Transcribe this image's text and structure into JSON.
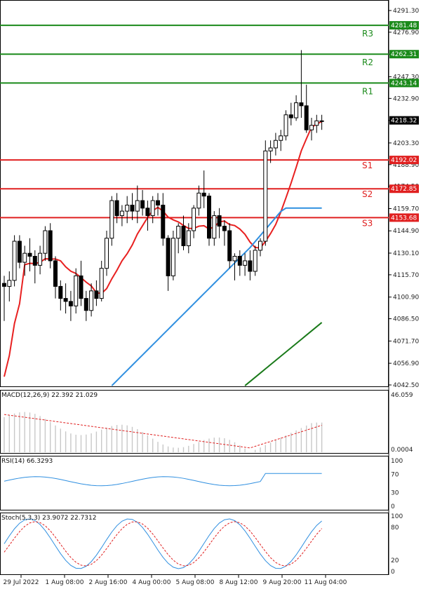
{
  "chart_data": {
    "type": "candlestick",
    "price_axis": {
      "min": 4042.5,
      "max": 4291.3,
      "ticks": [
        "4291.30",
        "4276.90",
        "4262.30",
        "4247.30",
        "4232.90",
        "4218.30",
        "4203.30",
        "4188.90",
        "4174.50",
        "4159.70",
        "4144.90",
        "4130.10",
        "4115.70",
        "4100.90",
        "4086.50",
        "4071.70",
        "4056.90",
        "4042.50"
      ]
    },
    "time_labels": [
      "29 Jul 2022",
      "1 Aug 08:00",
      "2 Aug 16:00",
      "4 Aug 00:00",
      "5 Aug 08:00",
      "8 Aug 12:00",
      "9 Aug 20:00",
      "11 Aug 04:00"
    ],
    "levels": [
      {
        "name": "R3",
        "value": 4281.48,
        "label": "4281.48",
        "color": "#1a8a1a"
      },
      {
        "name": "R2",
        "value": 4262.31,
        "label": "4262.31",
        "color": "#1a8a1a"
      },
      {
        "name": "R1",
        "value": 4243.14,
        "label": "4243.14",
        "color": "#1a8a1a"
      },
      {
        "name": "S1",
        "value": 4192.02,
        "label": "4192.02",
        "color": "#e02020"
      },
      {
        "name": "S2",
        "value": 4172.85,
        "label": "4172.85",
        "color": "#e02020"
      },
      {
        "name": "S3",
        "value": 4153.68,
        "label": "4153.68",
        "color": "#e02020"
      }
    ],
    "last_price": {
      "value": 4218.32,
      "label": "4218.32"
    },
    "candles": [
      [
        4110,
        4115,
        4085,
        4108
      ],
      [
        4108,
        4118,
        4098,
        4112
      ],
      [
        4112,
        4142,
        4108,
        4138
      ],
      [
        4138,
        4142,
        4120,
        4124
      ],
      [
        4124,
        4135,
        4115,
        4130
      ],
      [
        4130,
        4140,
        4118,
        4128
      ],
      [
        4128,
        4132,
        4110,
        4122
      ],
      [
        4122,
        4135,
        4116,
        4130
      ],
      [
        4130,
        4148,
        4125,
        4145
      ],
      [
        4145,
        4150,
        4120,
        4125
      ],
      [
        4125,
        4128,
        4100,
        4108
      ],
      [
        4108,
        4112,
        4092,
        4100
      ],
      [
        4100,
        4110,
        4090,
        4098
      ],
      [
        4098,
        4105,
        4085,
        4095
      ],
      [
        4095,
        4120,
        4090,
        4115
      ],
      [
        4115,
        4125,
        4095,
        4100
      ],
      [
        4100,
        4105,
        4085,
        4092
      ],
      [
        4092,
        4110,
        4088,
        4105
      ],
      [
        4105,
        4112,
        4095,
        4100
      ],
      [
        4100,
        4125,
        4098,
        4120
      ],
      [
        4120,
        4145,
        4115,
        4140
      ],
      [
        4140,
        4168,
        4135,
        4165
      ],
      [
        4165,
        4170,
        4150,
        4155
      ],
      [
        4155,
        4162,
        4148,
        4158
      ],
      [
        4158,
        4168,
        4150,
        4162
      ],
      [
        4162,
        4170,
        4152,
        4158
      ],
      [
        4158,
        4175,
        4150,
        4165
      ],
      [
        4165,
        4172,
        4155,
        4160
      ],
      [
        4160,
        4165,
        4145,
        4155
      ],
      [
        4155,
        4168,
        4150,
        4165
      ],
      [
        4165,
        4170,
        4155,
        4162
      ],
      [
        4162,
        4170,
        4135,
        4140
      ],
      [
        4140,
        4142,
        4105,
        4115
      ],
      [
        4115,
        4145,
        4112,
        4140
      ],
      [
        4140,
        4150,
        4130,
        4148
      ],
      [
        4148,
        4155,
        4132,
        4135
      ],
      [
        4135,
        4150,
        4130,
        4145
      ],
      [
        4145,
        4162,
        4140,
        4160
      ],
      [
        4160,
        4175,
        4155,
        4170
      ],
      [
        4170,
        4185,
        4160,
        4168
      ],
      [
        4168,
        4170,
        4135,
        4140
      ],
      [
        4140,
        4158,
        4135,
        4155
      ],
      [
        4155,
        4160,
        4140,
        4148
      ],
      [
        4148,
        4152,
        4135,
        4145
      ],
      [
        4145,
        4150,
        4120,
        4125
      ],
      [
        4125,
        4130,
        4112,
        4128
      ],
      [
        4128,
        4132,
        4115,
        4122
      ],
      [
        4122,
        4130,
        4115,
        4125
      ],
      [
        4125,
        4132,
        4112,
        4118
      ],
      [
        4118,
        4135,
        4115,
        4132
      ],
      [
        4132,
        4140,
        4128,
        4138
      ],
      [
        4138,
        4205,
        4135,
        4198
      ],
      [
        4198,
        4205,
        4190,
        4200
      ],
      [
        4200,
        4210,
        4195,
        4205
      ],
      [
        4205,
        4212,
        4198,
        4208
      ],
      [
        4208,
        4225,
        4205,
        4222
      ],
      [
        4222,
        4230,
        4215,
        4220
      ],
      [
        4220,
        4235,
        4218,
        4230
      ],
      [
        4230,
        4265,
        4220,
        4228
      ],
      [
        4228,
        4242,
        4210,
        4212
      ],
      [
        4212,
        4220,
        4205,
        4215
      ],
      [
        4215,
        4222,
        4210,
        4218
      ],
      [
        4218,
        4222,
        4212,
        4218
      ]
    ],
    "ma_fast_color": "#e82020",
    "ma_mid_color": "#2f8fe0",
    "ma_slow_color": "#1a7a1a",
    "macd": {
      "label": "MACD(12,26,9) 22.392 21.029",
      "axis_top": "46.059",
      "axis_bottom": "0.0004"
    },
    "rsi": {
      "label": "RSI(14) 66.3293",
      "ticks": [
        "100",
        "70",
        "30",
        "0"
      ]
    },
    "stoch": {
      "label": "Stoch(5,3,3) 23.9072 22.7312",
      "ticks": [
        "100",
        "80",
        "20",
        "0"
      ]
    }
  }
}
